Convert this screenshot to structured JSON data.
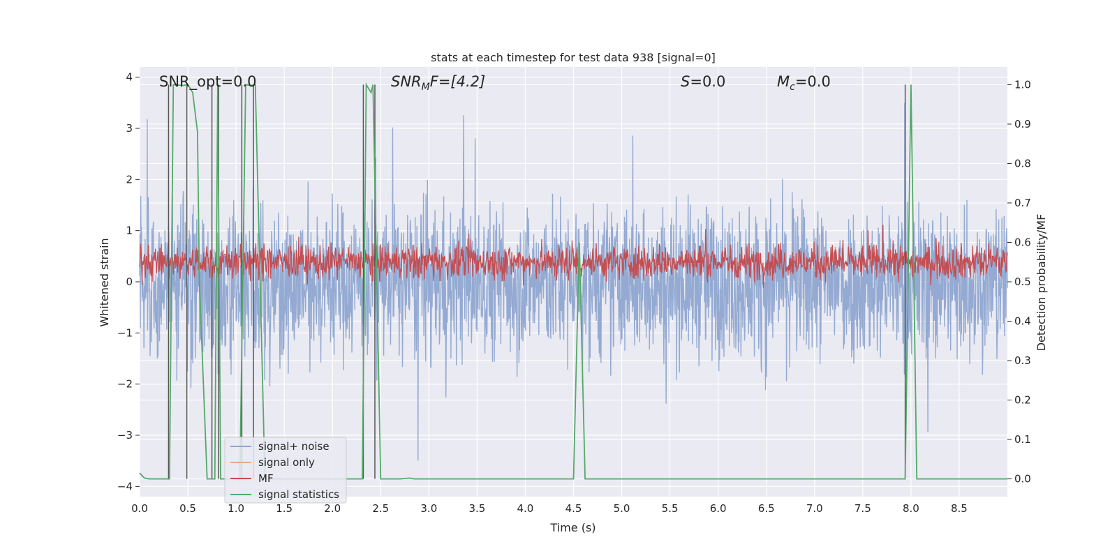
{
  "chart_data": {
    "type": "line",
    "title": "stats at each timestep for test data 938 [signal=0]",
    "xlabel": "Time (s)",
    "ylabel": "Whitened strain",
    "y2label": "Detection probability/MF",
    "xlim": [
      0,
      9.0
    ],
    "ylim": [
      -4.2,
      4.2
    ],
    "y2lim": [
      -0.045,
      1.045
    ],
    "xticks": [
      "0.0",
      "0.5",
      "1.0",
      "1.5",
      "2.0",
      "2.5",
      "3.0",
      "3.5",
      "4.0",
      "4.5",
      "5.0",
      "5.5",
      "6.0",
      "6.5",
      "7.0",
      "7.5",
      "8.0",
      "8.5"
    ],
    "yticks": [
      -4,
      -3,
      -2,
      -1,
      0,
      1,
      2,
      3,
      4
    ],
    "ytick_labels": [
      "−4",
      "−3",
      "−2",
      "−1",
      "0",
      "1",
      "2",
      "3",
      "4"
    ],
    "y2ticks": [
      "0.0",
      "0.1",
      "0.2",
      "0.3",
      "0.4",
      "0.5",
      "0.6",
      "0.7",
      "0.8",
      "0.9",
      "1.0"
    ],
    "grid": true,
    "legend_position": "lower-left",
    "annotations": {
      "snr_opt": "SNR_opt=0.0",
      "snr_mf_base": "SNR",
      "snr_mf_sub": "M",
      "snr_mf_rest": "F=[4.2]",
      "s_base": "S",
      "s_rest": "=0.0",
      "mc_base": "M",
      "mc_sub": "c",
      "mc_rest": "=0.0"
    },
    "series": [
      {
        "name": "signal+ noise",
        "color": "#8fa6d0",
        "axis": "left",
        "description_amplitude": "noise approx ±1.6, peaks to ±3.8",
        "x_range": [
          0,
          9.0
        ]
      },
      {
        "name": "signal only",
        "color": "#e8a98a",
        "axis": "left",
        "x_range": [
          0,
          9.0
        ],
        "values": []
      },
      {
        "name": "MF",
        "color": "#c44e52",
        "axis": "right",
        "baseline": 0.55,
        "x_range": [
          0,
          9.0
        ]
      },
      {
        "name": "signal statistics",
        "color": "#55a868",
        "axis": "right",
        "x": [
          0.0,
          0.05,
          0.1,
          0.3,
          0.31,
          0.35,
          0.45,
          0.5,
          0.55,
          0.6,
          0.62,
          0.7,
          0.75,
          0.78,
          0.81,
          0.84,
          0.86,
          1.0,
          1.04,
          1.1,
          1.15,
          1.2,
          1.25,
          1.3,
          1.36,
          2.3,
          2.31,
          2.35,
          2.4,
          2.42,
          2.46,
          2.5,
          2.51,
          2.7,
          2.8,
          2.85,
          3.0,
          4.5,
          4.56,
          4.62,
          7.94,
          8.0,
          8.06,
          9.0
        ],
        "values": [
          0.015,
          0.002,
          0.0,
          0.0,
          0.0,
          1.0,
          0.998,
          1.0,
          0.98,
          0.88,
          0.5,
          0.0,
          0.0,
          0.0,
          1.0,
          0.0,
          0.0,
          0.0,
          0.0,
          1.0,
          0.998,
          1.0,
          0.5,
          0.0,
          0.0,
          0.0,
          0.0,
          1.0,
          0.98,
          1.0,
          0.5,
          0.0,
          0.0,
          0.0,
          0.002,
          0.0,
          0.0,
          0.0,
          0.6,
          0.0,
          0.0,
          1.0,
          0.0,
          0.0
        ]
      }
    ],
    "vlines": [
      0.3,
      0.49,
      0.75,
      0.82,
      1.06,
      1.18,
      2.32,
      2.44,
      7.94
    ]
  }
}
